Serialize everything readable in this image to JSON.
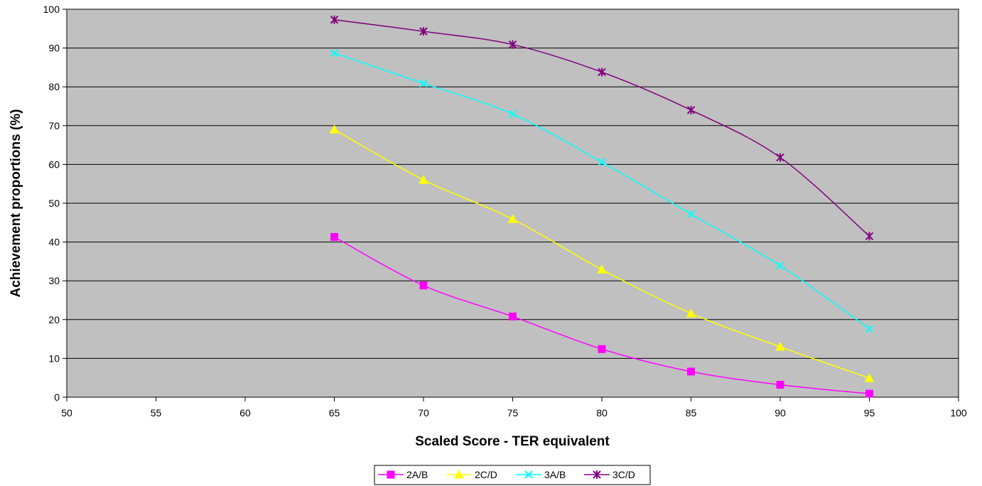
{
  "chart_data": {
    "type": "line",
    "title": "",
    "xlabel": "Scaled Score - TER equivalent",
    "ylabel": "Achievement proportions (%)",
    "xlim": [
      50,
      100
    ],
    "ylim": [
      0,
      100
    ],
    "x_ticks": [
      50,
      55,
      60,
      65,
      70,
      75,
      80,
      85,
      90,
      95,
      100
    ],
    "y_ticks": [
      0,
      10,
      20,
      30,
      40,
      50,
      60,
      70,
      80,
      90,
      100
    ],
    "grid": "horizontal",
    "plot_background": "#c0c0c0",
    "legend_position": "bottom-center",
    "x": [
      65,
      70,
      75,
      80,
      85,
      90,
      95
    ],
    "series": [
      {
        "name": "2A/B",
        "color": "#ff00ff",
        "marker": "square",
        "values": [
          41.3,
          28.8,
          20.8,
          12.4,
          6.6,
          3.2,
          0.9
        ]
      },
      {
        "name": "2C/D",
        "color": "#ffff00",
        "marker": "triangle",
        "values": [
          69.0,
          56.0,
          45.9,
          32.9,
          21.6,
          13.0,
          4.9
        ]
      },
      {
        "name": "3A/B",
        "color": "#00ffff",
        "marker": "x",
        "values": [
          88.7,
          80.9,
          73.0,
          60.6,
          47.2,
          33.9,
          17.6
        ]
      },
      {
        "name": "3C/D",
        "color": "#800080",
        "marker": "asterisk",
        "values": [
          97.3,
          94.3,
          90.9,
          83.8,
          74.0,
          61.8,
          41.5
        ]
      }
    ]
  }
}
